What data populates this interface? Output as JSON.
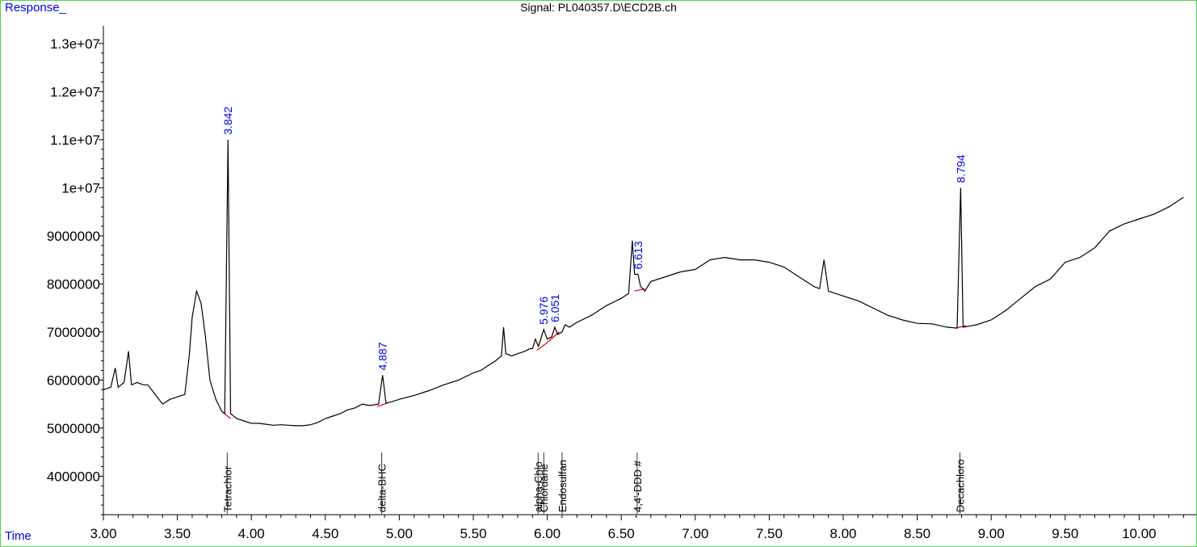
{
  "chart_data": {
    "type": "line",
    "title": "Signal: PL040357.D\\ECD2B.ch",
    "ylabel": "Response_",
    "xlabel": "Time",
    "xlim": [
      3.0,
      10.32
    ],
    "ylim": [
      3200000,
      13300000
    ],
    "x_ticks": [
      "3.00",
      "3.50",
      "4.00",
      "4.50",
      "5.00",
      "5.50",
      "6.00",
      "6.50",
      "7.00",
      "7.50",
      "8.00",
      "8.50",
      "9.00",
      "9.50",
      "10.00"
    ],
    "x_tick_values": [
      3.0,
      3.5,
      4.0,
      4.5,
      5.0,
      5.5,
      6.0,
      6.5,
      7.0,
      7.5,
      8.0,
      8.5,
      9.0,
      9.5,
      10.0
    ],
    "y_ticks": [
      "1.3e+07",
      "1.2e+07",
      "1.1e+07",
      "1e+07",
      "9000000",
      "8000000",
      "7000000",
      "6000000",
      "5000000",
      "4000000"
    ],
    "y_tick_values": [
      13000000,
      12000000,
      11000000,
      10000000,
      9000000,
      8000000,
      7000000,
      6000000,
      5000000,
      4000000
    ],
    "grid": false,
    "colors": {
      "trace": "#000000",
      "peak_label": "#0000ee",
      "baseline": "#e00000",
      "frame": "#4cd84c"
    },
    "trace": [
      [
        3.0,
        5800000
      ],
      [
        3.05,
        5850000
      ],
      [
        3.08,
        6250000
      ],
      [
        3.1,
        5850000
      ],
      [
        3.14,
        5950000
      ],
      [
        3.17,
        6600000
      ],
      [
        3.19,
        5900000
      ],
      [
        3.23,
        5950000
      ],
      [
        3.27,
        5900000
      ],
      [
        3.3,
        5900000
      ],
      [
        3.35,
        5700000
      ],
      [
        3.4,
        5500000
      ],
      [
        3.45,
        5600000
      ],
      [
        3.5,
        5650000
      ],
      [
        3.55,
        5700000
      ],
      [
        3.58,
        6500000
      ],
      [
        3.6,
        7300000
      ],
      [
        3.63,
        7850000
      ],
      [
        3.66,
        7600000
      ],
      [
        3.69,
        6900000
      ],
      [
        3.72,
        6000000
      ],
      [
        3.76,
        5600000
      ],
      [
        3.8,
        5350000
      ],
      [
        3.82,
        5300000
      ],
      [
        3.842,
        11000000
      ],
      [
        3.86,
        5300000
      ],
      [
        3.9,
        5200000
      ],
      [
        3.95,
        5150000
      ],
      [
        4.0,
        5100000
      ],
      [
        4.05,
        5100000
      ],
      [
        4.1,
        5080000
      ],
      [
        4.15,
        5060000
      ],
      [
        4.2,
        5070000
      ],
      [
        4.25,
        5060000
      ],
      [
        4.3,
        5050000
      ],
      [
        4.35,
        5050000
      ],
      [
        4.4,
        5070000
      ],
      [
        4.45,
        5120000
      ],
      [
        4.5,
        5200000
      ],
      [
        4.55,
        5250000
      ],
      [
        4.6,
        5300000
      ],
      [
        4.65,
        5380000
      ],
      [
        4.7,
        5420000
      ],
      [
        4.75,
        5500000
      ],
      [
        4.8,
        5470000
      ],
      [
        4.86,
        5500000
      ],
      [
        4.887,
        6100000
      ],
      [
        4.91,
        5520000
      ],
      [
        4.95,
        5550000
      ],
      [
        5.0,
        5600000
      ],
      [
        5.1,
        5680000
      ],
      [
        5.2,
        5780000
      ],
      [
        5.3,
        5900000
      ],
      [
        5.4,
        6000000
      ],
      [
        5.5,
        6150000
      ],
      [
        5.55,
        6200000
      ],
      [
        5.6,
        6300000
      ],
      [
        5.65,
        6400000
      ],
      [
        5.69,
        6500000
      ],
      [
        5.705,
        7100000
      ],
      [
        5.72,
        6550000
      ],
      [
        5.76,
        6500000
      ],
      [
        5.8,
        6550000
      ],
      [
        5.85,
        6600000
      ],
      [
        5.88,
        6650000
      ],
      [
        5.9,
        6650000
      ],
      [
        5.92,
        6850000
      ],
      [
        5.94,
        6700000
      ],
      [
        5.976,
        7050000
      ],
      [
        6.0,
        6850000
      ],
      [
        6.03,
        6900000
      ],
      [
        6.051,
        7100000
      ],
      [
        6.07,
        6950000
      ],
      [
        6.1,
        7000000
      ],
      [
        6.12,
        7150000
      ],
      [
        6.15,
        7100000
      ],
      [
        6.2,
        7200000
      ],
      [
        6.3,
        7350000
      ],
      [
        6.4,
        7550000
      ],
      [
        6.5,
        7700000
      ],
      [
        6.55,
        7800000
      ],
      [
        6.575,
        8900000
      ],
      [
        6.59,
        8200000
      ],
      [
        6.613,
        8200000
      ],
      [
        6.63,
        7950000
      ],
      [
        6.66,
        7850000
      ],
      [
        6.7,
        8050000
      ],
      [
        6.8,
        8150000
      ],
      [
        6.9,
        8250000
      ],
      [
        7.0,
        8300000
      ],
      [
        7.05,
        8400000
      ],
      [
        7.1,
        8500000
      ],
      [
        7.2,
        8550000
      ],
      [
        7.3,
        8500000
      ],
      [
        7.4,
        8500000
      ],
      [
        7.5,
        8450000
      ],
      [
        7.6,
        8350000
      ],
      [
        7.7,
        8150000
      ],
      [
        7.8,
        7950000
      ],
      [
        7.84,
        7900000
      ],
      [
        7.87,
        8500000
      ],
      [
        7.9,
        7850000
      ],
      [
        8.0,
        7750000
      ],
      [
        8.1,
        7650000
      ],
      [
        8.2,
        7500000
      ],
      [
        8.3,
        7350000
      ],
      [
        8.4,
        7250000
      ],
      [
        8.5,
        7180000
      ],
      [
        8.6,
        7170000
      ],
      [
        8.7,
        7100000
      ],
      [
        8.77,
        7080000
      ],
      [
        8.794,
        10000000
      ],
      [
        8.81,
        7100000
      ],
      [
        8.85,
        7120000
      ],
      [
        8.9,
        7150000
      ],
      [
        9.0,
        7250000
      ],
      [
        9.1,
        7450000
      ],
      [
        9.2,
        7700000
      ],
      [
        9.3,
        7950000
      ],
      [
        9.4,
        8100000
      ],
      [
        9.5,
        8450000
      ],
      [
        9.6,
        8550000
      ],
      [
        9.7,
        8750000
      ],
      [
        9.8,
        9100000
      ],
      [
        9.9,
        9250000
      ],
      [
        10.0,
        9350000
      ],
      [
        10.1,
        9450000
      ],
      [
        10.2,
        9600000
      ],
      [
        10.3,
        9800000
      ]
    ],
    "peaks": [
      {
        "rt": 3.842,
        "label": "3.842",
        "apex": 11000000,
        "compound": "Tetrachlor",
        "baseline": [
          [
            3.82,
            5300000
          ],
          [
            3.86,
            5200000
          ]
        ]
      },
      {
        "rt": 4.887,
        "label": "4.887",
        "apex": 6100000,
        "compound": "delta-BHC",
        "baseline": [
          [
            4.85,
            5450000
          ],
          [
            4.92,
            5520000
          ]
        ]
      },
      {
        "rt": 5.976,
        "label": "5.976",
        "apex": 7050000,
        "compound": "alpha-Chlo",
        "baseline": [
          [
            5.93,
            6620000
          ],
          [
            6.0,
            6780000
          ]
        ]
      },
      {
        "rt": 5.976,
        "label": "",
        "apex": 7050000,
        "compound": "Chlordane",
        "baseline": []
      },
      {
        "rt": 6.051,
        "label": "6.051",
        "apex": 7100000,
        "compound": "Endosulfan",
        "baseline": [
          [
            6.0,
            6780000
          ],
          [
            6.08,
            7000000
          ]
        ]
      },
      {
        "rt": 6.613,
        "label": "6.613",
        "apex": 8200000,
        "compound": "4,4'-DDD #",
        "baseline": [
          [
            6.59,
            7850000
          ],
          [
            6.66,
            7900000
          ]
        ]
      },
      {
        "rt": 8.794,
        "label": "8.794",
        "apex": 10000000,
        "compound": "Decachloro",
        "baseline": [
          [
            8.76,
            7080000
          ],
          [
            8.83,
            7130000
          ]
        ]
      }
    ]
  }
}
